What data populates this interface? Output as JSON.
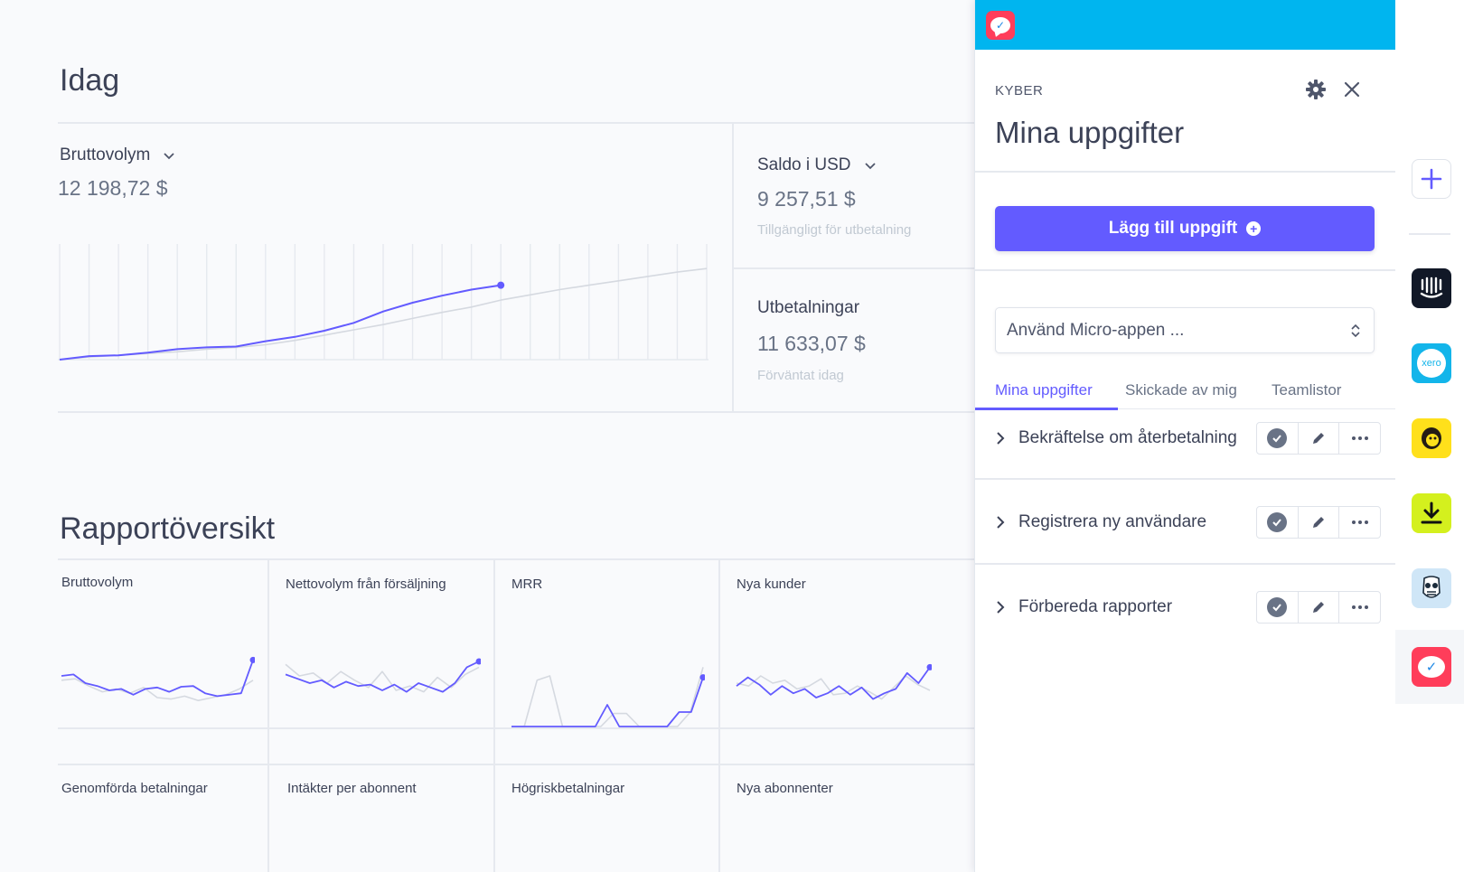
{
  "dashboard": {
    "today_title": "Idag",
    "gross": {
      "label": "Bruttovolym",
      "value": "12 198,72 $"
    },
    "balance": {
      "label": "Saldo i USD",
      "value": "9 257,51 $",
      "sub": "Tillgängligt för utbetalning"
    },
    "payouts": {
      "label": "Utbetalningar",
      "value": "11 633,07 $",
      "sub": "Förväntat idag"
    },
    "report_title": "Rapportöversikt",
    "tiles": [
      {
        "label": "Bruttovolym"
      },
      {
        "label": "Nettovolym från försäljning"
      },
      {
        "label": "MRR"
      },
      {
        "label": "Nya kunder"
      },
      {
        "label": "Genomförda betalningar"
      },
      {
        "label": "Intäkter per abonnent"
      },
      {
        "label": "Högriskbetalningar"
      },
      {
        "label": "Nya abonnenter"
      }
    ]
  },
  "colors": {
    "accent": "#635bff",
    "topbar": "#00b5ef",
    "compare_line": "#d5d9e0",
    "brand_red": "#ff3d5a"
  },
  "chart_data": [
    {
      "type": "line",
      "title": "Bruttovolym",
      "series": [
        {
          "values": [
            0,
            4,
            5,
            8,
            12,
            14,
            15,
            21,
            26,
            33,
            42,
            55,
            65,
            73,
            80,
            85
          ]
        },
        {
          "values": [
            0,
            3,
            5,
            7,
            9,
            12,
            14,
            17,
            22,
            28,
            34,
            40,
            47,
            54,
            60,
            68,
            74,
            80,
            85,
            90,
            95,
            100,
            104
          ]
        }
      ],
      "ylim": [
        0,
        130
      ]
    },
    {
      "type": "line",
      "title": "Bruttovolym",
      "series": [
        {
          "values": [
            70,
            72,
            60,
            56,
            50,
            52,
            44,
            52,
            54,
            48,
            55,
            56,
            46,
            42,
            44,
            46,
            92
          ]
        },
        {
          "values": [
            64,
            66,
            56,
            48,
            52,
            46,
            54,
            40,
            38,
            42,
            36,
            40,
            44,
            52,
            64
          ]
        }
      ],
      "ylim": [
        0,
        100
      ]
    },
    {
      "type": "line",
      "title": "Nettovolym från försäljning",
      "series": [
        {
          "values": [
            72,
            66,
            60,
            64,
            54,
            62,
            56,
            58,
            50,
            58,
            48,
            60,
            54,
            48,
            60,
            82,
            90
          ]
        },
        {
          "values": [
            86,
            70,
            74,
            60,
            76,
            64,
            54,
            76,
            50,
            56,
            48,
            68,
            54,
            72,
            82
          ]
        }
      ],
      "ylim": [
        0,
        100
      ]
    },
    {
      "type": "line",
      "title": "MRR",
      "series": [
        {
          "values": [
            0,
            0,
            0,
            0,
            0,
            0,
            0,
            0,
            30,
            0,
            0,
            0,
            0,
            0,
            20,
            20,
            68
          ]
        },
        {
          "values": [
            0,
            0,
            64,
            70,
            0,
            0,
            0,
            0,
            18,
            18,
            0,
            0,
            0,
            0,
            20,
            82
          ]
        }
      ],
      "ylim": [
        0,
        100
      ]
    },
    {
      "type": "line",
      "title": "Nya kunder",
      "series": [
        {
          "values": [
            56,
            68,
            58,
            44,
            56,
            46,
            52,
            40,
            46,
            56,
            44,
            54,
            38,
            46,
            52,
            74,
            60,
            82
          ]
        },
        {
          "values": [
            60,
            56,
            70,
            60,
            64,
            52,
            56,
            66,
            44,
            46,
            56,
            48,
            38,
            54,
            70,
            58,
            50
          ]
        }
      ],
      "ylim": [
        0,
        100
      ]
    }
  ],
  "panel": {
    "brand": "KYBER",
    "title": "Mina uppgifter",
    "add_button": "Lägg till uppgift",
    "select_value": "Använd Micro-appen ...",
    "tabs": [
      "Mina uppgifter",
      "Skickade av mig",
      "Teamlistor"
    ],
    "tasks": [
      {
        "label": "Bekräftelse om återbetalning"
      },
      {
        "label": "Registrera ny användare"
      },
      {
        "label": "Förbereda rapporter"
      }
    ],
    "icons": {
      "settings": "gear-icon",
      "close": "close-icon"
    }
  },
  "rail": {
    "apps": [
      "add-app-icon",
      "intercom-app-icon",
      "xero-app-icon",
      "mailchimp-app-icon",
      "download-app-icon",
      "hootsuite-app-icon",
      "kyber-app-icon"
    ],
    "xero_text": "xero"
  }
}
